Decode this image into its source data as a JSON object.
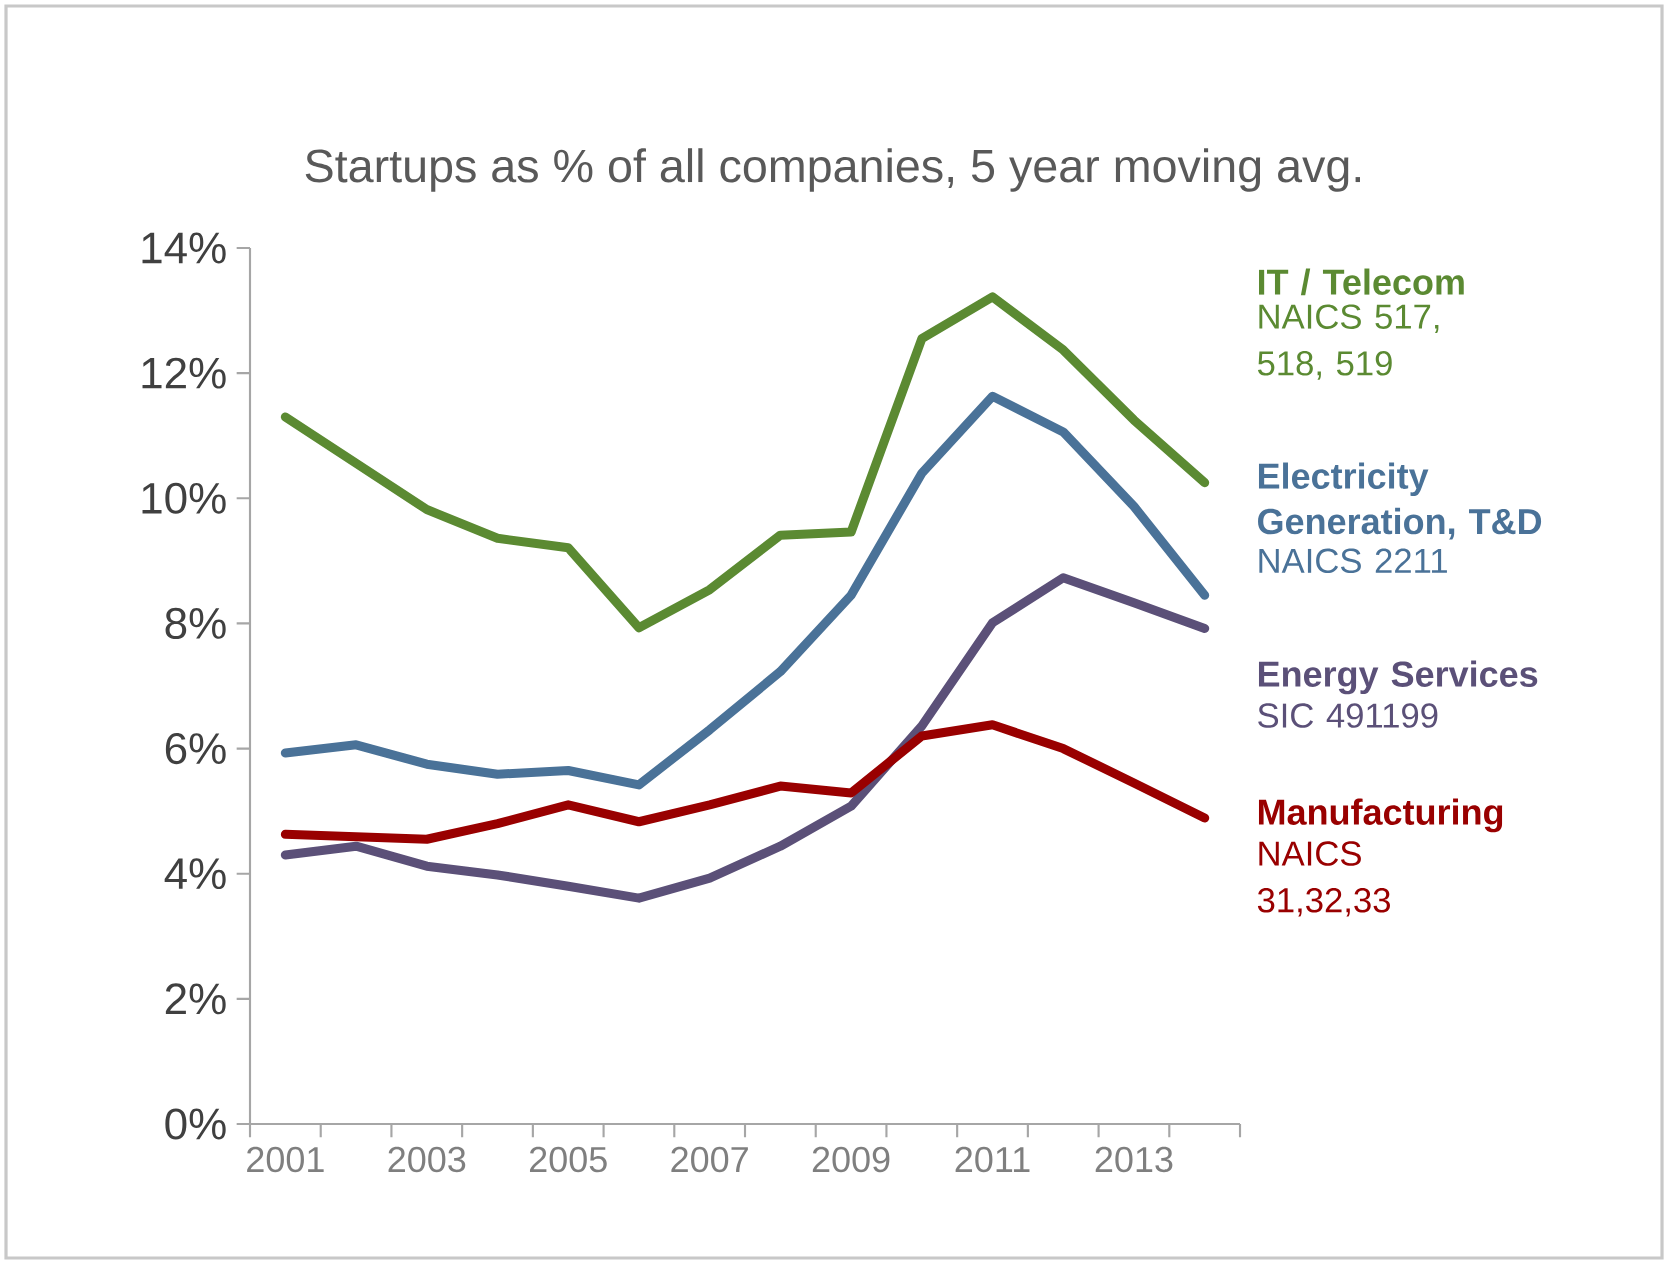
{
  "chart_data": {
    "type": "line",
    "title": "Startups as % of all companies, 5 year moving avg.",
    "categories": [
      "2001",
      null,
      "2003",
      null,
      "2005",
      null,
      "2007",
      null,
      "2009",
      null,
      "2011",
      null,
      "2013",
      null
    ],
    "ylim": [
      0,
      14
    ],
    "yticks": [
      {
        "value": 0,
        "label": "0%"
      },
      {
        "value": 2,
        "label": "2%"
      },
      {
        "value": 4,
        "label": "4%"
      },
      {
        "value": 6,
        "label": "6%"
      },
      {
        "value": 8,
        "label": "8%"
      },
      {
        "value": 10,
        "label": "10%"
      },
      {
        "value": 12,
        "label": "12%"
      },
      {
        "value": 14,
        "label": "14%"
      }
    ],
    "series": [
      {
        "name": "IT / Telecom",
        "color": "#5b8a32",
        "values": [
          11.3,
          10.56,
          9.82,
          9.36,
          9.21,
          7.93,
          8.54,
          9.41,
          9.46,
          12.55,
          13.22,
          12.37,
          11.25,
          10.25
        ]
      },
      {
        "name": "Electricity Generation, T&D",
        "color": "#4a7298",
        "values": [
          5.93,
          6.06,
          5.75,
          5.59,
          5.65,
          5.42,
          6.3,
          7.23,
          8.45,
          10.4,
          11.63,
          11.06,
          9.87,
          8.45
        ]
      },
      {
        "name": "Energy Services",
        "color": "#5b5078",
        "values": [
          4.3,
          4.44,
          4.12,
          3.98,
          3.8,
          3.61,
          3.93,
          4.44,
          5.08,
          6.36,
          8.01,
          8.73,
          8.33,
          7.92
        ]
      },
      {
        "name": "Manufacturing",
        "color": "#990000",
        "values": [
          4.63,
          4.59,
          4.55,
          4.8,
          5.1,
          4.83,
          5.1,
          5.4,
          5.29,
          6.2,
          6.38,
          6.0,
          5.45,
          4.89
        ]
      }
    ],
    "annotations": [
      "NAICS 517, 518, 519",
      "NAICS 2211",
      "SIC 491199",
      "NAICS 31,32,33"
    ],
    "legend": "right",
    "grid": false,
    "marker": "none",
    "line_style": "solid"
  }
}
